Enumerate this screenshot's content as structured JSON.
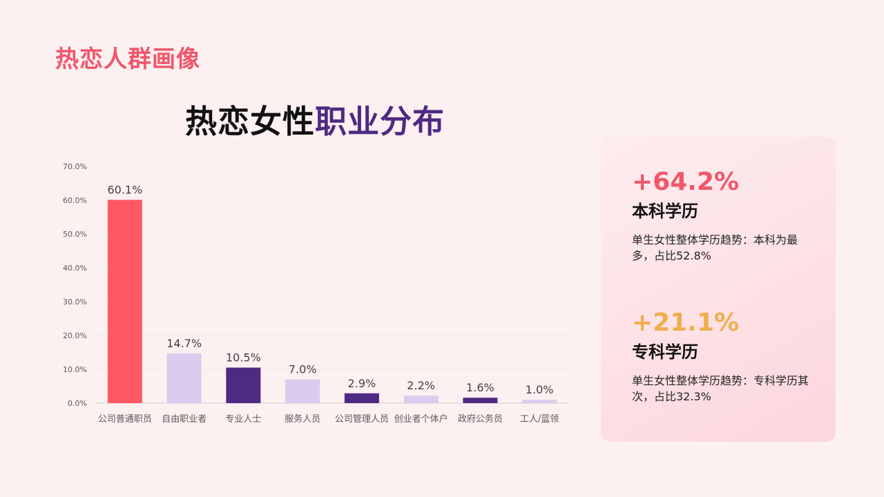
{
  "page": {
    "heading": "热恋人群画像"
  },
  "chart_title": {
    "part1": "热恋女性",
    "part2": "职业分布"
  },
  "chart_data": {
    "type": "bar",
    "title": "热恋女性职业分布",
    "categories": [
      "公司普通职员",
      "自由职业者",
      "专业人士",
      "服务人员",
      "公司管理人员",
      "创业者个体户",
      "政府公务员",
      "工人/蓝领"
    ],
    "values": [
      60.1,
      14.7,
      10.5,
      7.0,
      2.9,
      2.2,
      1.6,
      1.0
    ],
    "data_labels": [
      "60.1%",
      "14.7%",
      "10.5%",
      "7.0%",
      "2.9%",
      "2.2%",
      "1.6%",
      "1.0%"
    ],
    "ylim": [
      0,
      70
    ],
    "yticks": [
      0,
      10,
      20,
      30,
      40,
      50,
      60,
      70
    ],
    "ytick_labels": [
      "0.0%",
      "10.0%",
      "20.0%",
      "30.0%",
      "40.0%",
      "50.0%",
      "60.0%",
      "70.0%"
    ],
    "grid": true,
    "bar_colors": [
      "#ff5a64",
      "#d9cced",
      "#4e2a82",
      "#d9cced",
      "#4e2a82",
      "#d9cced",
      "#4e2a82",
      "#d9cced"
    ],
    "xlabel": "",
    "ylabel": ""
  },
  "stats": [
    {
      "value": "+64.2%",
      "label": "本科学历",
      "desc": "单生女性整体学历趋势：本科为最多，占比52.8%",
      "color": "#f0566a"
    },
    {
      "value": "+21.1%",
      "label": "专科学历",
      "desc": "单生女性整体学历趋势：专科学历其次，占比32.3%",
      "color": "#efae4e"
    }
  ]
}
